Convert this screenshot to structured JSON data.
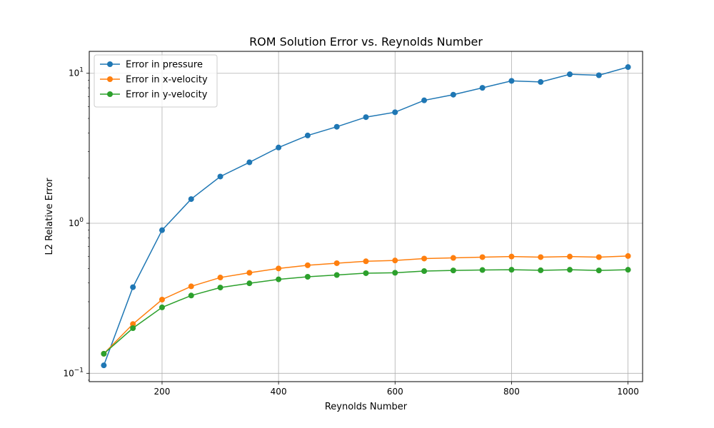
{
  "chart_data": {
    "type": "line",
    "title": "ROM Solution Error vs. Reynolds Number",
    "xlabel": "Reynolds Number",
    "ylabel": "L2 Relative Error",
    "xlim": [
      75,
      1025
    ],
    "ylim": [
      0.088,
      14.0
    ],
    "yscale": "log",
    "grid": true,
    "legend_position": "top-left",
    "x_ticks": [
      "200",
      "400",
      "600",
      "800",
      "1000"
    ],
    "x_tick_values": [
      200,
      400,
      600,
      800,
      1000
    ],
    "y_ticks": [
      {
        "value": 0.1,
        "base": "10",
        "exp": "−1"
      },
      {
        "value": 1,
        "base": "10",
        "exp": "0"
      },
      {
        "value": 10,
        "base": "10",
        "exp": "1"
      }
    ],
    "x": [
      100,
      150,
      200,
      250,
      300,
      350,
      400,
      450,
      500,
      550,
      600,
      650,
      700,
      750,
      800,
      850,
      900,
      950,
      1000
    ],
    "series": [
      {
        "name": "Error in pressure",
        "color": "#1f77b4",
        "values": [
          0.113,
          0.375,
          0.9,
          1.45,
          2.05,
          2.55,
          3.2,
          3.85,
          4.4,
          5.1,
          5.5,
          6.6,
          7.2,
          8.0,
          8.9,
          8.75,
          9.85,
          9.7,
          11.0
        ]
      },
      {
        "name": "Error in x-velocity",
        "color": "#ff7f0e",
        "values": [
          0.135,
          0.213,
          0.31,
          0.38,
          0.435,
          0.468,
          0.5,
          0.525,
          0.542,
          0.558,
          0.565,
          0.582,
          0.588,
          0.595,
          0.6,
          0.595,
          0.6,
          0.595,
          0.605
        ]
      },
      {
        "name": "Error in y-velocity",
        "color": "#2ca02c",
        "values": [
          0.135,
          0.2,
          0.275,
          0.33,
          0.373,
          0.398,
          0.423,
          0.44,
          0.452,
          0.465,
          0.468,
          0.48,
          0.485,
          0.488,
          0.49,
          0.486,
          0.49,
          0.485,
          0.49
        ]
      }
    ]
  }
}
